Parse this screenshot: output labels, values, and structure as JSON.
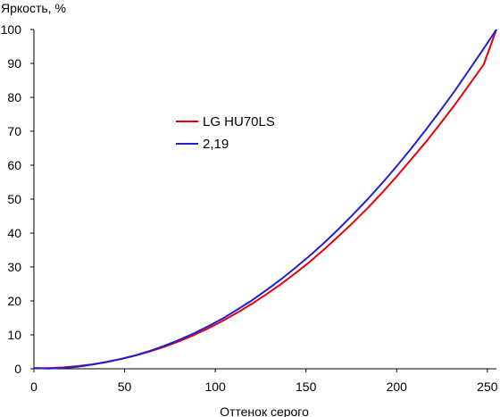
{
  "chart_data": {
    "type": "line",
    "xlabel": "Оттенок серого",
    "ylabel": "Яркость, %",
    "xlim": [
      0,
      255
    ],
    "ylim": [
      0,
      100
    ],
    "xticks": [
      "0",
      "50",
      "100",
      "150",
      "200",
      "250"
    ],
    "yticks": [
      "0",
      "10",
      "20",
      "30",
      "40",
      "50",
      "60",
      "70",
      "80",
      "90",
      "100"
    ],
    "grid": false,
    "legend_position": "upper-left-center",
    "series": [
      {
        "name": "LG HU70LS",
        "color": "#e8000b",
        "x": [
          0,
          8,
          16,
          24,
          32,
          40,
          48,
          56,
          64,
          72,
          80,
          88,
          96,
          104,
          112,
          120,
          128,
          136,
          144,
          152,
          160,
          168,
          176,
          184,
          192,
          200,
          208,
          216,
          224,
          232,
          240,
          248,
          255
        ],
        "y": [
          0.2,
          0.2,
          0.4,
          0.8,
          1.3,
          2.0,
          2.9,
          3.9,
          5.1,
          6.5,
          8.1,
          9.9,
          11.9,
          14.1,
          16.5,
          19.1,
          21.9,
          24.9,
          28.1,
          31.5,
          35.2,
          39.1,
          43.1,
          47.4,
          51.9,
          56.7,
          61.7,
          66.8,
          72.2,
          77.8,
          83.7,
          89.7,
          100
        ]
      },
      {
        "name": "2,19",
        "color": "#1f1fd6",
        "x": [
          0,
          8,
          16,
          24,
          32,
          40,
          48,
          56,
          64,
          72,
          80,
          88,
          96,
          104,
          112,
          120,
          128,
          136,
          144,
          152,
          160,
          168,
          176,
          184,
          192,
          200,
          208,
          216,
          224,
          232,
          240,
          248,
          255
        ],
        "y": [
          0.2,
          0.05,
          0.24,
          0.6,
          1.2,
          2.0,
          2.9,
          4.0,
          5.3,
          6.8,
          8.5,
          10.4,
          12.5,
          14.8,
          17.4,
          20.1,
          23.1,
          26.3,
          29.7,
          33.3,
          37.1,
          41.2,
          45.5,
          50.0,
          54.7,
          59.7,
          64.9,
          70.4,
          76.0,
          81.9,
          88.1,
          94.4,
          100
        ]
      }
    ]
  }
}
